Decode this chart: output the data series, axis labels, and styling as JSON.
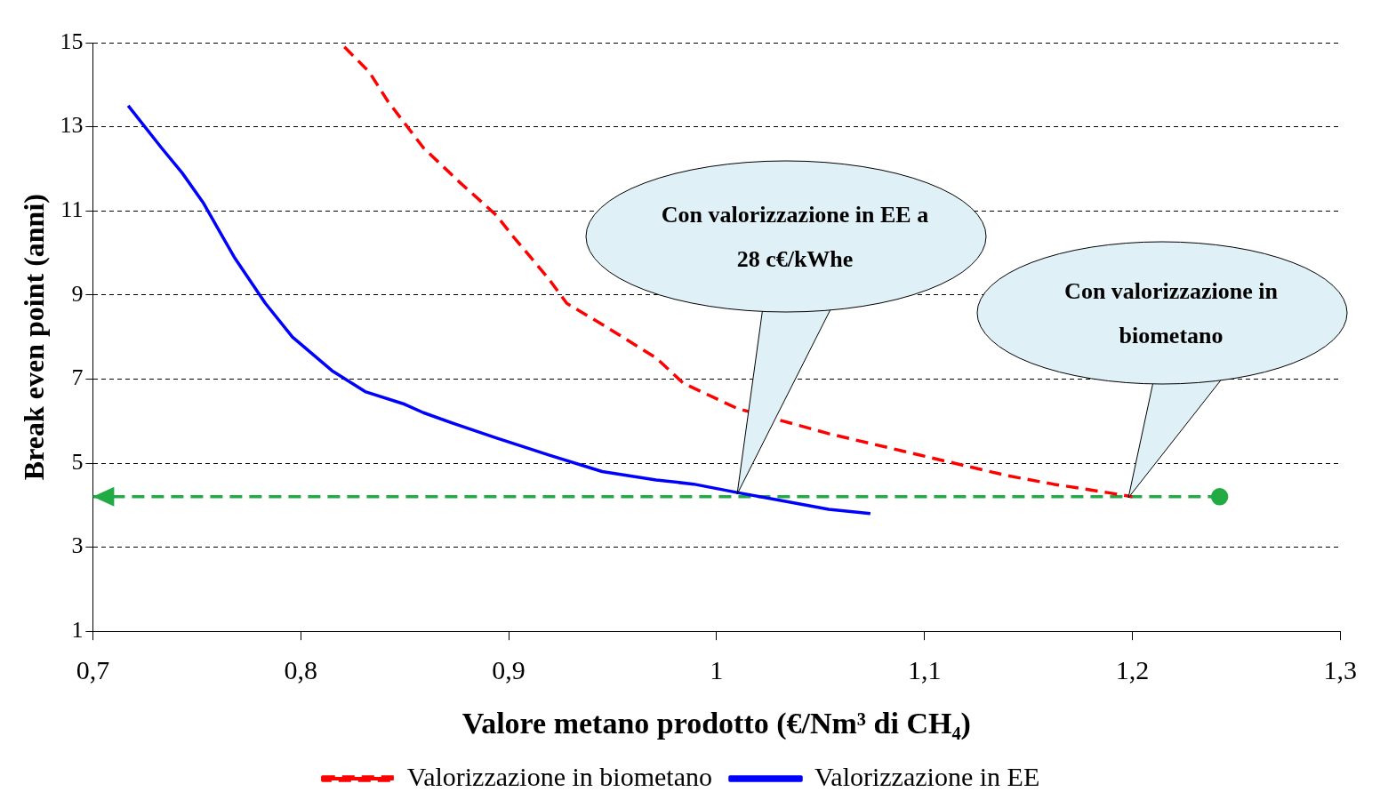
{
  "chart_data": {
    "type": "line",
    "xlabel": "Valore metano prodotto (€/Nm³ di CH₄)",
    "ylabel": "Break even point (anni)",
    "xlim": [
      0.7,
      1.3
    ],
    "xticks": [
      {
        "value": 0.7,
        "label": "0,7"
      },
      {
        "value": 0.8,
        "label": "0,8"
      },
      {
        "value": 0.9,
        "label": "0,9"
      },
      1,
      {
        "value": 1.1,
        "label": "1,1"
      },
      {
        "value": 1.2,
        "label": "1,2"
      },
      {
        "value": 1.3,
        "label": "1,3"
      }
    ],
    "ylim": [
      1,
      15
    ],
    "yticks": [
      1,
      3,
      5,
      7,
      9,
      11,
      13,
      15
    ],
    "grid": "y",
    "legend": "bottom",
    "series": [
      {
        "name": "Valorizzazione in biometano",
        "color": "#ff0000",
        "line_style": "dashed",
        "x": [
          0.821,
          0.833,
          0.842,
          0.859,
          0.876,
          0.894,
          0.902,
          0.919,
          0.928,
          0.945,
          0.971,
          0.984,
          1.01,
          1.054,
          1.097,
          1.14,
          1.162,
          1.188,
          1.2
        ],
        "values": [
          14.9,
          14.3,
          13.6,
          12.5,
          11.7,
          10.9,
          10.4,
          9.4,
          8.8,
          8.3,
          7.5,
          6.9,
          6.3,
          5.7,
          5.2,
          4.7,
          4.5,
          4.3,
          4.2
        ]
      },
      {
        "name": "Valorizzazione in EE",
        "color": "#0000ff",
        "line_style": "solid",
        "x": [
          0.717,
          0.733,
          0.743,
          0.753,
          0.768,
          0.783,
          0.796,
          0.815,
          0.831,
          0.85,
          0.859,
          0.876,
          0.894,
          0.919,
          0.945,
          0.971,
          0.989,
          1.01,
          1.032,
          1.054,
          1.074
        ],
        "values": [
          13.5,
          12.5,
          11.9,
          11.2,
          9.9,
          8.8,
          8.0,
          7.2,
          6.7,
          6.4,
          6.2,
          5.9,
          5.6,
          5.2,
          4.8,
          4.6,
          4.5,
          4.3,
          4.1,
          3.9,
          3.8
        ]
      },
      {
        "color": "#22aa44",
        "line_style": "dashed",
        "marker": "circle",
        "x": [
          0.7,
          1.242
        ],
        "values": [
          4.2,
          4.2
        ]
      }
    ],
    "annotations": [
      "Con valorizzazione in EE a 28 c€/kWhe",
      "Con valorizzazione in biometano"
    ]
  }
}
